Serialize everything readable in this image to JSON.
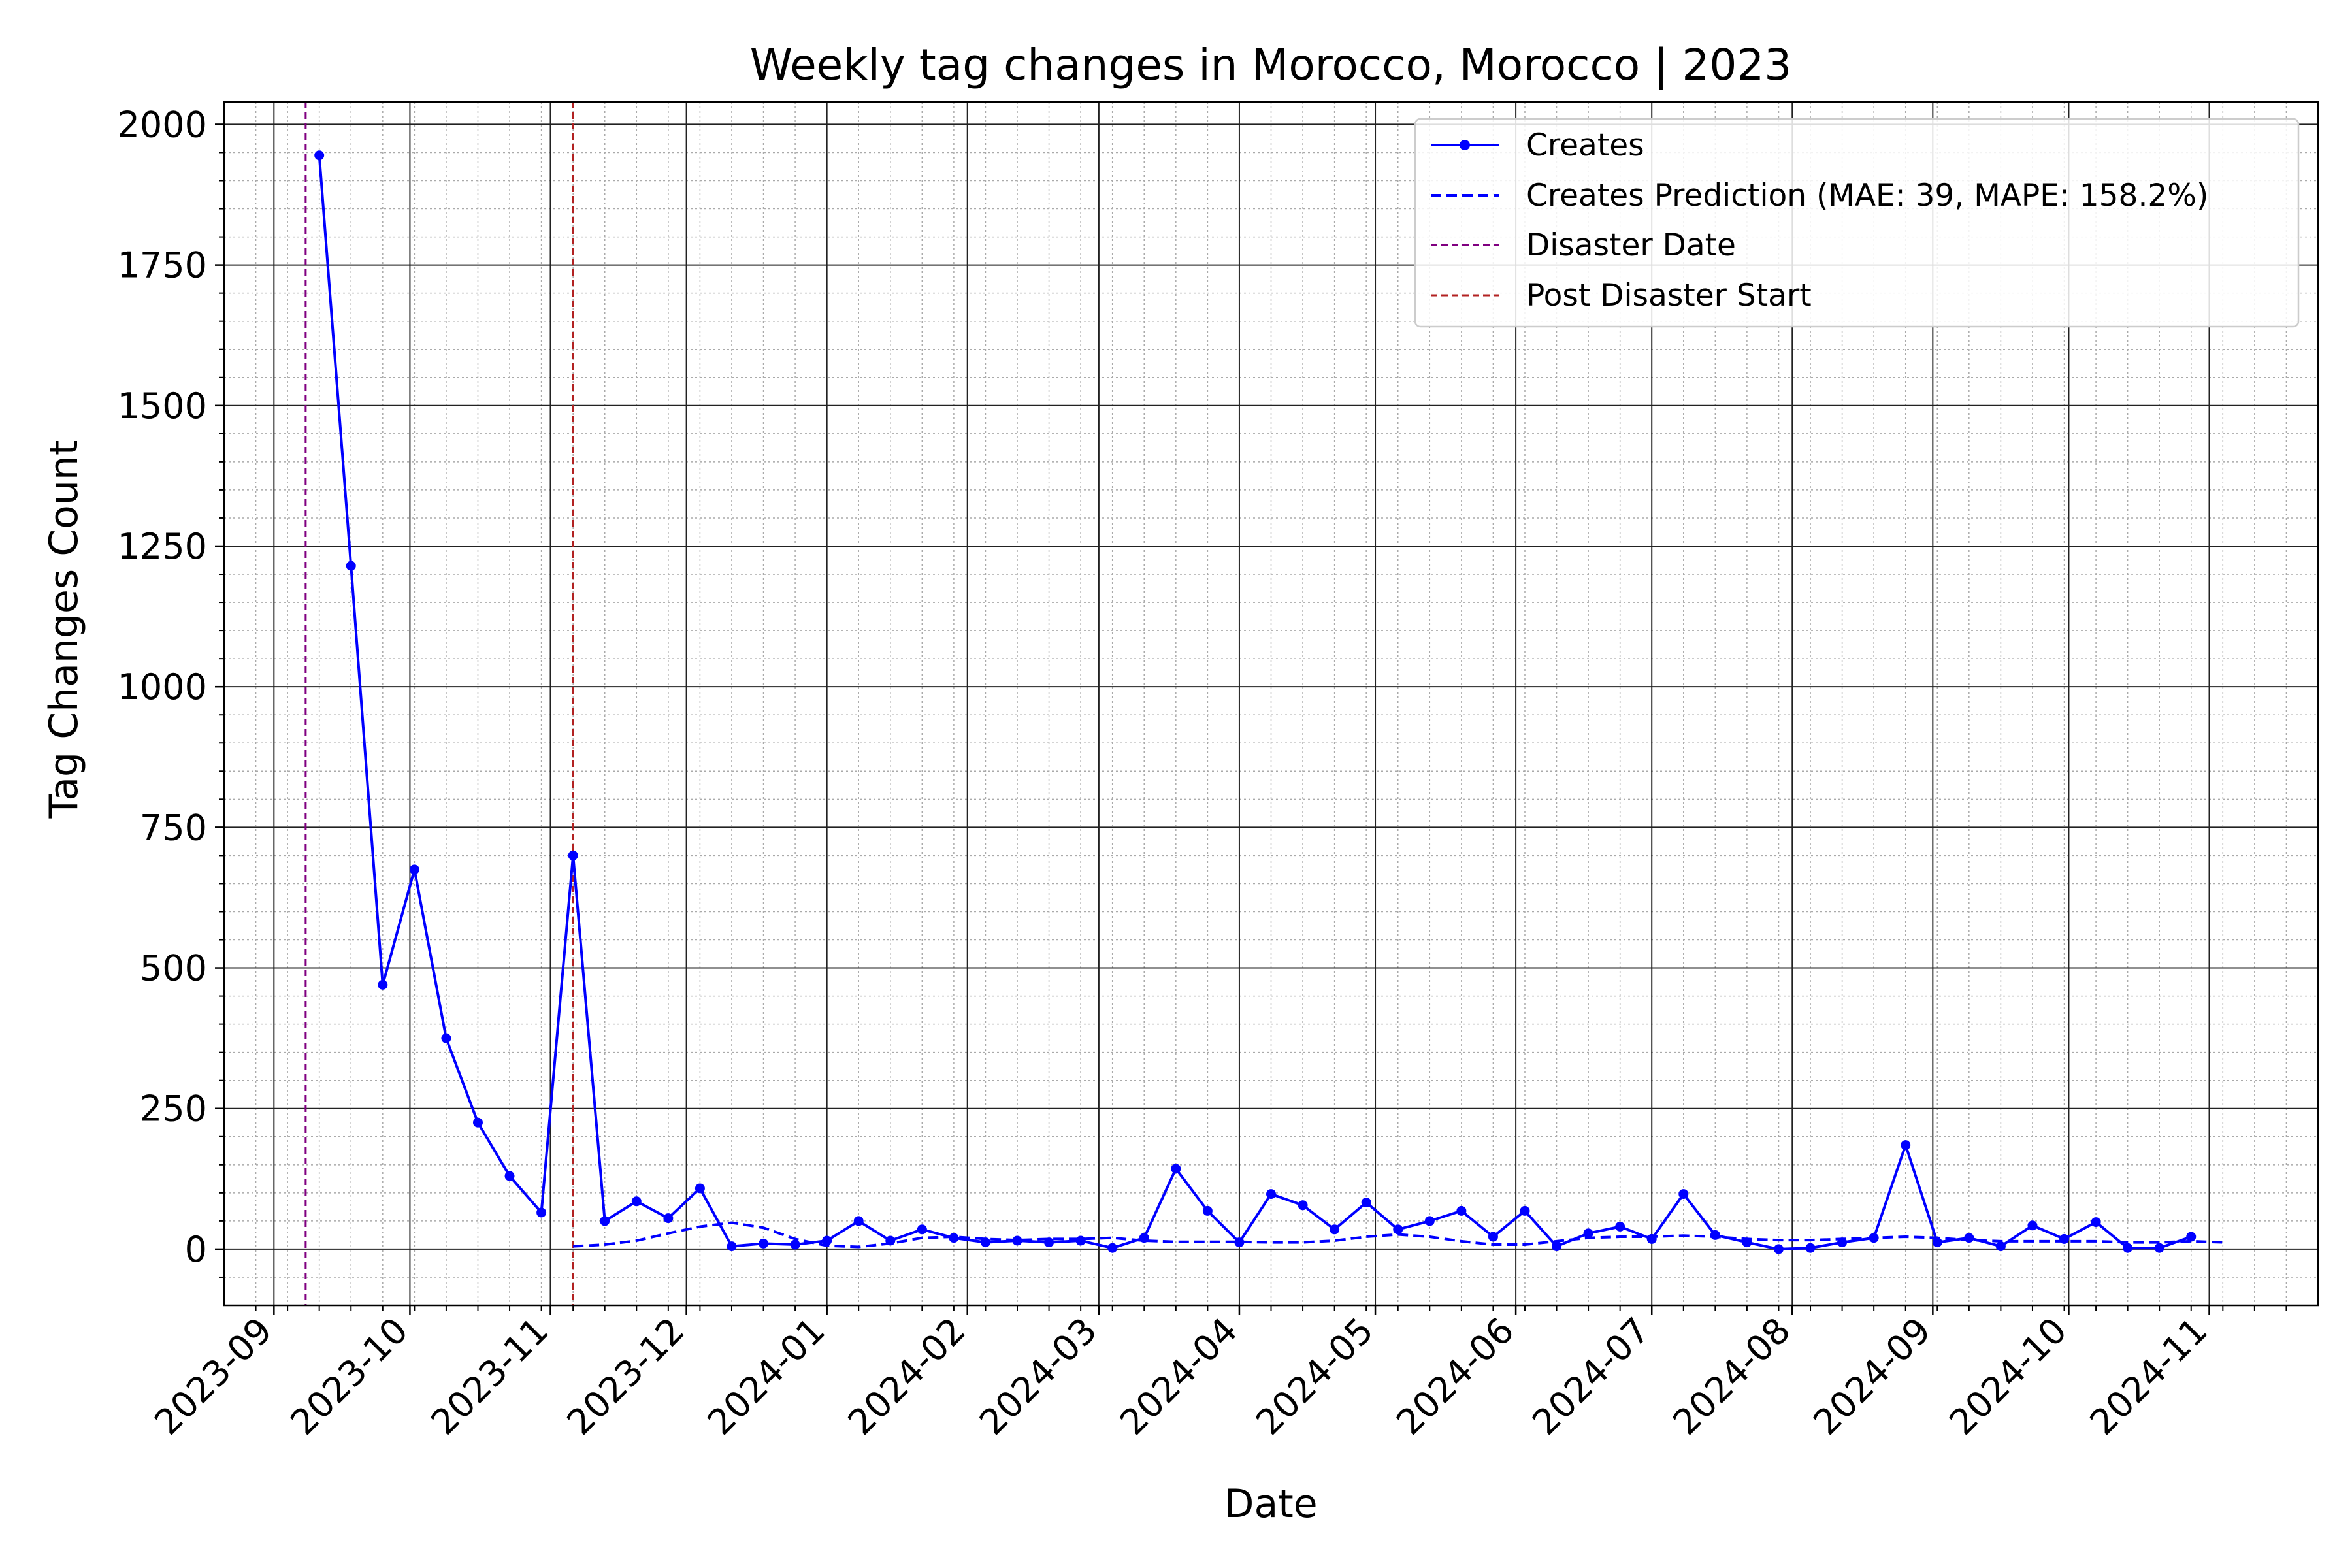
{
  "chart_data": {
    "type": "line",
    "title": "Weekly tag changes in Morocco, Morocco | 2023",
    "xlabel": "Date",
    "ylabel": "Tag Changes Count",
    "xlim": [
      "2023-08-21",
      "2024-11-25"
    ],
    "ylim": [
      -100,
      2040
    ],
    "grid": "major and minor",
    "legend_position": "top-right",
    "x_ticks": [
      "2023-09",
      "2023-10",
      "2023-11",
      "2023-12",
      "2024-01",
      "2024-02",
      "2024-03",
      "2024-04",
      "2024-05",
      "2024-06",
      "2024-07",
      "2024-08",
      "2024-09",
      "2024-10",
      "2024-11"
    ],
    "y_ticks": [
      "0",
      "250",
      "500",
      "750",
      "1000",
      "1250",
      "1500",
      "1750",
      "2000"
    ],
    "y_tick_values": [
      0,
      250,
      500,
      750,
      1000,
      1250,
      1500,
      1750,
      2000
    ],
    "colors": {
      "creates": "#0000ff",
      "prediction": "#0000ff",
      "disaster": "#800080",
      "post_disaster": "#b22222"
    },
    "series": [
      {
        "name": "Creates",
        "style": "solid line with dots",
        "x": [
          "2023-09-11",
          "2023-09-18",
          "2023-09-25",
          "2023-10-02",
          "2023-10-09",
          "2023-10-16",
          "2023-10-23",
          "2023-10-30",
          "2023-11-06",
          "2023-11-13",
          "2023-11-20",
          "2023-11-27",
          "2023-12-04",
          "2023-12-11",
          "2023-12-18",
          "2023-12-25",
          "2024-01-01",
          "2024-01-08",
          "2024-01-15",
          "2024-01-22",
          "2024-01-29",
          "2024-02-05",
          "2024-02-12",
          "2024-02-19",
          "2024-02-26",
          "2024-03-04",
          "2024-03-11",
          "2024-03-18",
          "2024-03-25",
          "2024-04-01",
          "2024-04-08",
          "2024-04-15",
          "2024-04-22",
          "2024-04-29",
          "2024-05-06",
          "2024-05-13",
          "2024-05-20",
          "2024-05-27",
          "2024-06-03",
          "2024-06-10",
          "2024-06-17",
          "2024-06-24",
          "2024-07-01",
          "2024-07-08",
          "2024-07-15",
          "2024-07-22",
          "2024-07-29",
          "2024-08-05",
          "2024-08-12",
          "2024-08-19",
          "2024-08-26",
          "2024-09-02",
          "2024-09-09",
          "2024-09-16",
          "2024-09-23",
          "2024-09-30",
          "2024-10-07",
          "2024-10-14",
          "2024-10-21",
          "2024-10-28"
        ],
        "y": [
          1945,
          1215,
          470,
          675,
          375,
          225,
          130,
          65,
          700,
          50,
          85,
          55,
          108,
          5,
          10,
          8,
          15,
          50,
          15,
          35,
          20,
          12,
          15,
          12,
          15,
          2,
          20,
          143,
          68,
          12,
          98,
          78,
          35,
          83,
          35,
          50,
          68,
          22,
          68,
          5,
          28,
          40,
          18,
          98,
          25,
          12,
          0,
          2,
          12,
          20,
          185,
          12,
          20,
          5,
          42,
          18,
          48,
          2,
          2,
          22
        ]
      },
      {
        "name": "Creates Prediction (MAE: 39, MAPE: 158.2%)",
        "style": "dashed line",
        "x": [
          "2023-11-06",
          "2023-11-13",
          "2023-11-20",
          "2023-11-27",
          "2023-12-04",
          "2023-12-11",
          "2023-12-18",
          "2023-12-25",
          "2024-01-01",
          "2024-01-08",
          "2024-01-15",
          "2024-01-22",
          "2024-01-29",
          "2024-02-05",
          "2024-02-12",
          "2024-02-19",
          "2024-02-26",
          "2024-03-04",
          "2024-03-11",
          "2024-03-18",
          "2024-03-25",
          "2024-04-01",
          "2024-04-08",
          "2024-04-15",
          "2024-04-22",
          "2024-04-29",
          "2024-05-06",
          "2024-05-13",
          "2024-05-20",
          "2024-05-27",
          "2024-06-03",
          "2024-06-10",
          "2024-06-17",
          "2024-06-24",
          "2024-07-01",
          "2024-07-08",
          "2024-07-15",
          "2024-07-22",
          "2024-07-29",
          "2024-08-05",
          "2024-08-12",
          "2024-08-19",
          "2024-08-26",
          "2024-09-02",
          "2024-09-09",
          "2024-09-16",
          "2024-09-23",
          "2024-09-30",
          "2024-10-07",
          "2024-10-14",
          "2024-10-21",
          "2024-10-28",
          "2024-11-04"
        ],
        "y": [
          5,
          8,
          15,
          28,
          40,
          47,
          38,
          18,
          6,
          4,
          10,
          20,
          22,
          18,
          16,
          18,
          18,
          20,
          15,
          13,
          13,
          13,
          12,
          12,
          15,
          22,
          26,
          22,
          14,
          8,
          8,
          14,
          20,
          22,
          22,
          24,
          22,
          18,
          16,
          16,
          18,
          20,
          22,
          20,
          16,
          14,
          14,
          14,
          14,
          12,
          12,
          14,
          12
        ]
      }
    ],
    "vlines": [
      {
        "name": "Disaster Date",
        "x": "2023-09-08",
        "style": "dashed"
      },
      {
        "name": "Post Disaster Start",
        "x": "2023-11-06",
        "style": "dashed"
      }
    ]
  }
}
